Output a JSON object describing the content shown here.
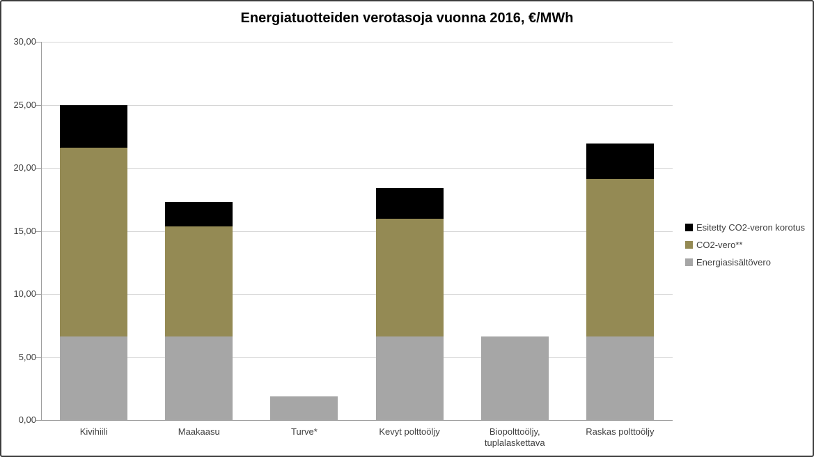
{
  "title": "Energiatuotteiden verotasoja vuonna 2016, €/MWh",
  "chart_data": {
    "type": "bar",
    "stacked": true,
    "title": "Energiatuotteiden verotasoja vuonna 2016, €/MWh",
    "categories": [
      "Kivihiili",
      "Maakaasu",
      "Turve*",
      "Kevyt polttoöljy",
      "Biopolttoöljy, tuplalaskettava",
      "Raskas polttoöljy"
    ],
    "series": [
      {
        "name": "Energiasisältövero",
        "color": "#a6a6a6",
        "values": [
          6.65,
          6.65,
          1.9,
          6.65,
          6.65,
          6.65
        ]
      },
      {
        "name": "CO2-vero**",
        "color": "#948a54",
        "values": [
          14.95,
          8.7,
          0,
          9.3,
          0,
          12.45
        ]
      },
      {
        "name": "Esitetty CO2-veron korotus",
        "color": "#000000",
        "values": [
          3.4,
          1.95,
          0,
          2.45,
          0,
          2.85
        ]
      }
    ],
    "totals": [
      25.0,
      17.3,
      1.9,
      18.4,
      6.65,
      21.95
    ],
    "xlabel": "",
    "ylabel": "",
    "ylim": [
      0,
      30
    ],
    "ytick_step": 5,
    "ytick_labels": [
      "0,00",
      "5,00",
      "10,00",
      "15,00",
      "20,00",
      "25,00",
      "30,00"
    ],
    "grid": true,
    "legend_position": "right",
    "legend": [
      {
        "label": "Esitetty CO2-veron korotus",
        "color": "#000000"
      },
      {
        "label": "CO2-vero**",
        "color": "#948a54"
      },
      {
        "label": "Energiasisältövero",
        "color": "#a6a6a6"
      }
    ]
  }
}
